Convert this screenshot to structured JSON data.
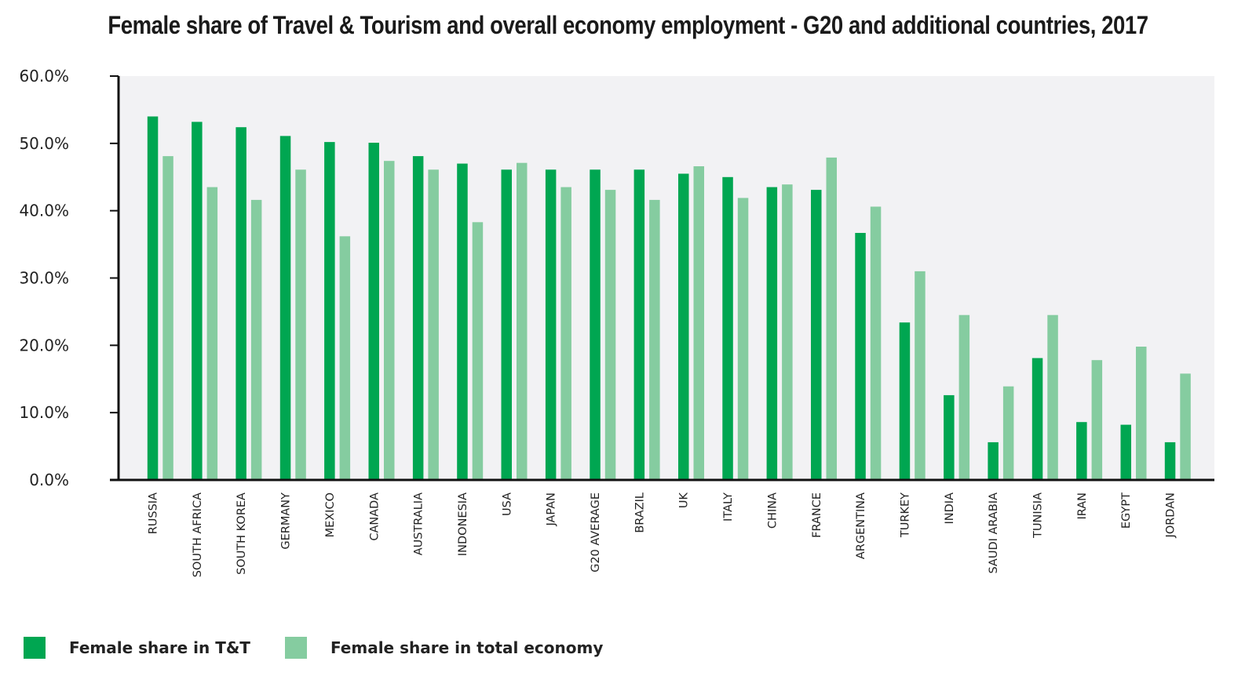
{
  "chart_data": {
    "type": "bar",
    "title": "Female share of Travel & Tourism and overall economy employment - G20 and additional countries, 2017",
    "categories": [
      "RUSSIA",
      "SOUTH AFRICA",
      "SOUTH KOREA",
      "GERMANY",
      "MEXICO",
      "CANADA",
      "AUSTRALIA",
      "INDONESIA",
      "USA",
      "JAPAN",
      "G20 AVERAGE",
      "BRAZIL",
      "UK",
      "ITALY",
      "CHINA",
      "FRANCE",
      "ARGENTINA",
      "TURKEY",
      "INDIA",
      "SAUDI ARABIA",
      "TUNISIA",
      "IRAN",
      "EGYPT",
      "JORDAN"
    ],
    "series": [
      {
        "name": "Female share in T&T",
        "color": "#00a651",
        "values": [
          54.0,
          53.2,
          52.4,
          51.1,
          50.2,
          50.1,
          48.1,
          47.0,
          46.1,
          46.1,
          46.1,
          46.1,
          45.5,
          45.0,
          43.5,
          43.1,
          36.7,
          23.4,
          12.6,
          5.6,
          18.1,
          8.6,
          8.2,
          5.6
        ]
      },
      {
        "name": "Female share in total economy",
        "color": "#85cca0",
        "values": [
          48.1,
          43.5,
          41.6,
          46.1,
          36.2,
          47.4,
          46.1,
          38.3,
          47.1,
          43.5,
          43.1,
          41.6,
          46.6,
          41.9,
          43.9,
          47.9,
          40.6,
          31.0,
          24.5,
          13.9,
          24.5,
          17.8,
          19.8,
          15.8
        ]
      }
    ],
    "yticks": [
      "0.0%",
      "10.0%",
      "20.0%",
      "30.0%",
      "40.0%",
      "50.0%",
      "60.0%"
    ],
    "ylim": [
      0,
      60
    ],
    "xlabel": "",
    "ylabel": "",
    "plot_background": "#f2f2f4",
    "grid": false,
    "legend_position": "bottom-left"
  }
}
